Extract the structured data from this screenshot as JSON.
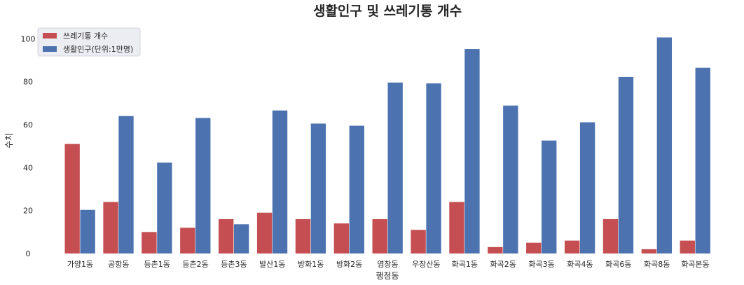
{
  "chart_data": {
    "type": "bar",
    "title": "생활인구 및 쓰레기통 개수",
    "xlabel": "행정동",
    "ylabel": "수치",
    "categories": [
      "가양1동",
      "공항동",
      "등촌1동",
      "등촌2동",
      "등촌3동",
      "발산1동",
      "방화1동",
      "방화2동",
      "염창동",
      "우장산동",
      "화곡1동",
      "화곡2동",
      "화곡3동",
      "화곡4동",
      "화곡6동",
      "화곡8동",
      "화곡본동"
    ],
    "series": [
      {
        "name": "쓰레기통 개수",
        "color": "#c44e52",
        "values": [
          51,
          24,
          10,
          12,
          16,
          19,
          16,
          14,
          16,
          11,
          24,
          3,
          5,
          6,
          16,
          2,
          6
        ]
      },
      {
        "name": "생활인구(단위:1만명)",
        "color": "#4c72b0",
        "values": [
          20.3,
          64,
          42.3,
          63.1,
          13.6,
          66.6,
          60.5,
          59.5,
          79.6,
          79.2,
          95.2,
          68.9,
          52.6,
          61.1,
          82.2,
          100.6,
          86.5
        ]
      }
    ],
    "ylim": [
      0,
      105
    ],
    "yticks": [
      0,
      20,
      40,
      60,
      80,
      100
    ],
    "grid": false,
    "legend_position": "top-left"
  }
}
